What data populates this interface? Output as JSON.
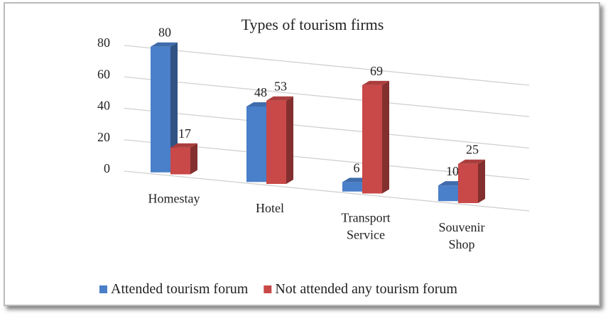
{
  "chart_data": {
    "type": "bar3d",
    "title": "Types of tourism firms",
    "categories": [
      "Homestay",
      "Hotel",
      "Transport Service",
      "Souvenir Shop"
    ],
    "series": [
      {
        "name": "Attended tourism forum",
        "color": "#4a7fc9",
        "values": [
          80,
          48,
          6,
          10
        ]
      },
      {
        "name": "Not attended any tourism forum",
        "color": "#c94848",
        "values": [
          17,
          53,
          69,
          25
        ]
      }
    ],
    "ylim": [
      0,
      80
    ],
    "yticks": [
      0,
      20,
      40,
      60,
      80
    ],
    "grid": true,
    "legend": "bottom"
  }
}
